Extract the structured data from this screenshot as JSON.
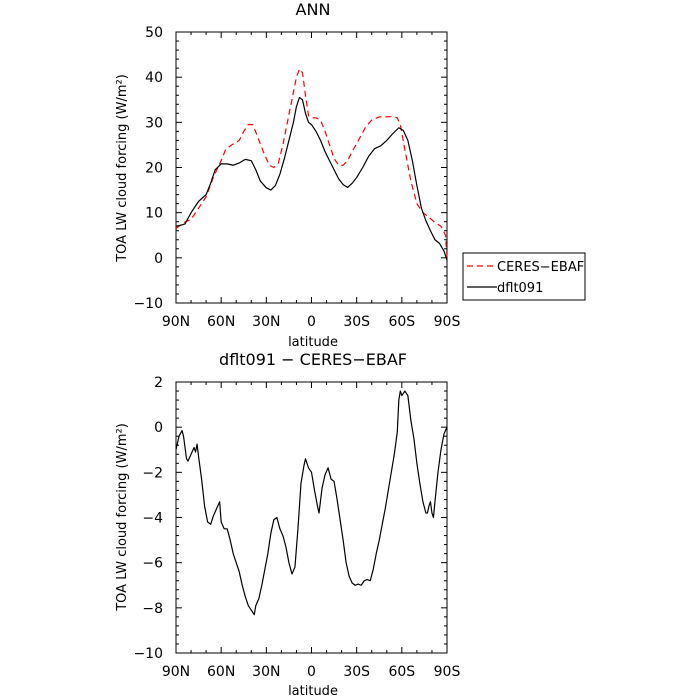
{
  "chart_data": [
    {
      "type": "line",
      "title": "ANN",
      "xlabel": "latitude",
      "ylabel": "TOA LW cloud forcing (W/m²)",
      "xlim": [
        90,
        -90
      ],
      "ylim": [
        -10,
        50
      ],
      "xtick_labels": [
        "90N",
        "60N",
        "30N",
        "0",
        "30S",
        "60S",
        "90S"
      ],
      "xtick_values": [
        90,
        60,
        30,
        0,
        -30,
        -60,
        -90
      ],
      "ytick_labels": [
        "−10",
        "0",
        "10",
        "20",
        "30",
        "40",
        "50"
      ],
      "ytick_values": [
        -10,
        0,
        10,
        20,
        30,
        40,
        50
      ],
      "legend_position": "right",
      "series": [
        {
          "name": "CERES−EBAF",
          "color": "#ff0000",
          "dash": "dashed",
          "points": [
            [
              90,
              6.5
            ],
            [
              85,
              7.8
            ],
            [
              80,
              8.5
            ],
            [
              75,
              11
            ],
            [
              70,
              13.5
            ],
            [
              65,
              18
            ],
            [
              60,
              21.5
            ],
            [
              57,
              24
            ],
            [
              53,
              25
            ],
            [
              48,
              26
            ],
            [
              45,
              28
            ],
            [
              42,
              29.5
            ],
            [
              39,
              29.5
            ],
            [
              36,
              27
            ],
            [
              32,
              23.5
            ],
            [
              28,
              20.5
            ],
            [
              25,
              20
            ],
            [
              22,
              21
            ],
            [
              19,
              25
            ],
            [
              16,
              30
            ],
            [
              13,
              35
            ],
            [
              10,
              40
            ],
            [
              8,
              41.8
            ],
            [
              6,
              41
            ],
            [
              4,
              36
            ],
            [
              2,
              31.5
            ],
            [
              0,
              31
            ],
            [
              -3,
              31
            ],
            [
              -6,
              30.5
            ],
            [
              -9,
              28
            ],
            [
              -12,
              25
            ],
            [
              -15,
              22
            ],
            [
              -18,
              20.5
            ],
            [
              -21,
              20.5
            ],
            [
              -24,
              21.5
            ],
            [
              -27,
              23.5
            ],
            [
              -32,
              26.5
            ],
            [
              -36,
              29
            ],
            [
              -40,
              30.5
            ],
            [
              -45,
              31.2
            ],
            [
              -50,
              31.2
            ],
            [
              -54,
              31.3
            ],
            [
              -57,
              31
            ],
            [
              -59,
              29.5
            ],
            [
              -62,
              24
            ],
            [
              -66,
              17
            ],
            [
              -70,
              12
            ],
            [
              -74,
              10
            ],
            [
              -78,
              9
            ],
            [
              -82,
              7.8
            ],
            [
              -86,
              7
            ],
            [
              -89,
              5
            ],
            [
              -90,
              0
            ]
          ]
        },
        {
          "name": "dflt091",
          "color": "#000000",
          "dash": "solid",
          "points": [
            [
              90,
              7
            ],
            [
              87,
              7.2
            ],
            [
              84,
              7.5
            ],
            [
              80,
              10
            ],
            [
              75,
              12.5
            ],
            [
              70,
              14
            ],
            [
              67,
              16.5
            ],
            [
              64,
              19.5
            ],
            [
              60,
              20.8
            ],
            [
              56,
              20.8
            ],
            [
              52,
              20.5
            ],
            [
              48,
              21
            ],
            [
              44,
              21.8
            ],
            [
              40,
              21.5
            ],
            [
              37,
              19.5
            ],
            [
              34,
              17
            ],
            [
              30,
              15.5
            ],
            [
              27,
              15
            ],
            [
              24,
              16
            ],
            [
              21,
              18.5
            ],
            [
              18,
              22
            ],
            [
              15,
              26
            ],
            [
              12,
              30
            ],
            [
              10,
              33.5
            ],
            [
              8,
              35.5
            ],
            [
              6,
              35
            ],
            [
              4,
              32
            ],
            [
              2,
              30
            ],
            [
              0,
              29.5
            ],
            [
              -3,
              28
            ],
            [
              -6,
              26
            ],
            [
              -9,
              23.5
            ],
            [
              -12,
              21.5
            ],
            [
              -15,
              19.5
            ],
            [
              -18,
              17.5
            ],
            [
              -21,
              16.2
            ],
            [
              -24,
              15.6
            ],
            [
              -27,
              16.5
            ],
            [
              -30,
              17.8
            ],
            [
              -34,
              20
            ],
            [
              -38,
              22.5
            ],
            [
              -42,
              24.2
            ],
            [
              -46,
              24.8
            ],
            [
              -50,
              26
            ],
            [
              -54,
              27.5
            ],
            [
              -58,
              28.8
            ],
            [
              -61,
              28.2
            ],
            [
              -64,
              26
            ],
            [
              -67,
              21.5
            ],
            [
              -70,
              16
            ],
            [
              -73,
              11
            ],
            [
              -76,
              8.2
            ],
            [
              -79,
              6
            ],
            [
              -82,
              4
            ],
            [
              -85,
              3.2
            ],
            [
              -88,
              1.5
            ],
            [
              -90,
              -0.5
            ]
          ]
        }
      ]
    },
    {
      "type": "line",
      "title": "dflt091 − CERES−EBAF",
      "xlabel": "latitude",
      "ylabel": "TOA LW cloud forcing (W/m²)",
      "xlim": [
        90,
        -90
      ],
      "ylim": [
        -10,
        2
      ],
      "xtick_labels": [
        "90N",
        "60N",
        "30N",
        "0",
        "30S",
        "60S",
        "90S"
      ],
      "xtick_values": [
        90,
        60,
        30,
        0,
        -30,
        -60,
        -90
      ],
      "ytick_labels": [
        "−10",
        "−8",
        "−6",
        "−4",
        "−2",
        "0",
        "2"
      ],
      "ytick_values": [
        -10,
        -8,
        -6,
        -4,
        -2,
        0,
        2
      ],
      "series": [
        {
          "name": "",
          "color": "#000000",
          "dash": "solid",
          "points": [
            [
              90,
              -1
            ],
            [
              88,
              -0.4
            ],
            [
              86,
              -0.15
            ],
            [
              85,
              -0.4
            ],
            [
              83,
              -1.4
            ],
            [
              82,
              -1.5
            ],
            [
              80,
              -1.2
            ],
            [
              78,
              -0.9
            ],
            [
              77,
              -1.1
            ],
            [
              76,
              -0.75
            ],
            [
              75,
              -1.3
            ],
            [
              73,
              -2.3
            ],
            [
              71,
              -3.5
            ],
            [
              69,
              -4.2
            ],
            [
              67,
              -4.3
            ],
            [
              65,
              -3.9
            ],
            [
              63,
              -3.6
            ],
            [
              61,
              -3.3
            ],
            [
              60,
              -4.2
            ],
            [
              58,
              -4.5
            ],
            [
              56,
              -4.5
            ],
            [
              54,
              -5
            ],
            [
              52,
              -5.6
            ],
            [
              50,
              -6
            ],
            [
              48,
              -6.4
            ],
            [
              46,
              -7
            ],
            [
              44,
              -7.5
            ],
            [
              42,
              -7.9
            ],
            [
              40,
              -8.1
            ],
            [
              38,
              -8.3
            ],
            [
              37,
              -7.9
            ],
            [
              35,
              -7.6
            ],
            [
              33,
              -7
            ],
            [
              31,
              -6.3
            ],
            [
              29,
              -5.6
            ],
            [
              27,
              -4.7
            ],
            [
              25,
              -4.1
            ],
            [
              23,
              -4
            ],
            [
              21,
              -4.5
            ],
            [
              19,
              -4.8
            ],
            [
              17,
              -5.3
            ],
            [
              15,
              -6
            ],
            [
              13,
              -6.5
            ],
            [
              11,
              -6.2
            ],
            [
              9,
              -4.5
            ],
            [
              7,
              -2.5
            ],
            [
              5,
              -1.7
            ],
            [
              4,
              -1.4
            ],
            [
              2,
              -1.8
            ],
            [
              0,
              -2
            ],
            [
              -2,
              -2.8
            ],
            [
              -4,
              -3.5
            ],
            [
              -5,
              -3.8
            ],
            [
              -7,
              -2.7
            ],
            [
              -9,
              -2.1
            ],
            [
              -11,
              -1.8
            ],
            [
              -13,
              -2.3
            ],
            [
              -15,
              -2.4
            ],
            [
              -17,
              -3.2
            ],
            [
              -19,
              -4.1
            ],
            [
              -21,
              -5
            ],
            [
              -23,
              -6
            ],
            [
              -25,
              -6.6
            ],
            [
              -27,
              -6.9
            ],
            [
              -29,
              -7
            ],
            [
              -31,
              -6.95
            ],
            [
              -33,
              -7
            ],
            [
              -35,
              -6.8
            ],
            [
              -37,
              -6.75
            ],
            [
              -39,
              -6.8
            ],
            [
              -41,
              -6.3
            ],
            [
              -43,
              -5.6
            ],
            [
              -45,
              -5
            ],
            [
              -47,
              -4.3
            ],
            [
              -49,
              -3.6
            ],
            [
              -51,
              -2.8
            ],
            [
              -53,
              -2
            ],
            [
              -55,
              -1.2
            ],
            [
              -57,
              -0.2
            ],
            [
              -58,
              1.2
            ],
            [
              -59,
              1.6
            ],
            [
              -60,
              1.4
            ],
            [
              -61,
              1.5
            ],
            [
              -62,
              1.6
            ],
            [
              -64,
              1.4
            ],
            [
              -66,
              0.3
            ],
            [
              -68,
              -0.5
            ],
            [
              -70,
              -1.6
            ],
            [
              -72,
              -2.5
            ],
            [
              -74,
              -3.3
            ],
            [
              -76,
              -3.8
            ],
            [
              -77,
              -3.8
            ],
            [
              -78,
              -3.5
            ],
            [
              -79,
              -3.3
            ],
            [
              -80,
              -3.8
            ],
            [
              -81,
              -4
            ],
            [
              -82,
              -3.3
            ],
            [
              -84,
              -2
            ],
            [
              -86,
              -1
            ],
            [
              -88,
              -0.3
            ],
            [
              -90,
              0
            ]
          ]
        }
      ]
    }
  ]
}
